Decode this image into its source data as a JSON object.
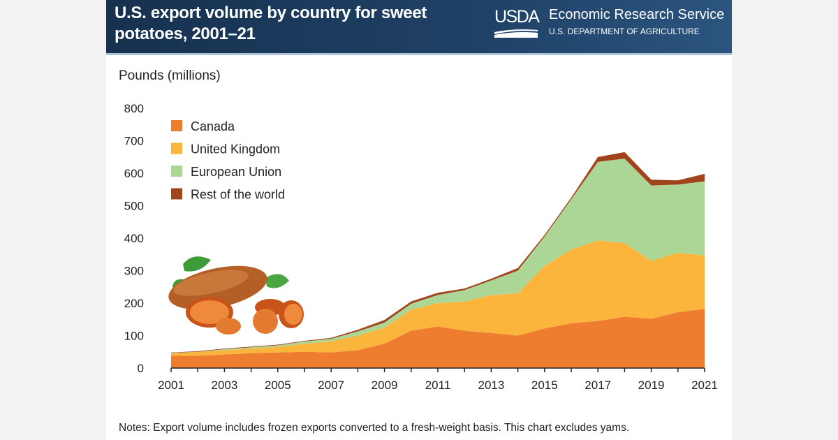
{
  "header": {
    "title": "U.S. export volume by country for sweet potatoes, 2001–21",
    "logo_text": "USDA",
    "agency": "Economic Research Service",
    "department": "U.S. DEPARTMENT OF AGRICULTURE"
  },
  "notes": "Notes: Export volume includes frozen exports converted to a fresh-weight basis. This chart excludes yams.",
  "chart_data": {
    "type": "area",
    "stacked": true,
    "title": "U.S. export volume by country for sweet potatoes, 2001–21",
    "ylabel": "Pounds (millions)",
    "xlabel": "",
    "ylim": [
      0,
      800
    ],
    "yticks": [
      "0",
      "100",
      "200",
      "300",
      "400",
      "500",
      "600",
      "700",
      "800"
    ],
    "xticks": [
      "2001",
      "2003",
      "2005",
      "2007",
      "2009",
      "2011",
      "2013",
      "2015",
      "2017",
      "2019",
      "2021"
    ],
    "x": [
      2001,
      2002,
      2003,
      2004,
      2005,
      2006,
      2007,
      2008,
      2009,
      2010,
      2011,
      2012,
      2013,
      2014,
      2015,
      2016,
      2017,
      2018,
      2019,
      2020,
      2021
    ],
    "legend_position": "top-left",
    "series": [
      {
        "name": "Canada",
        "color": "#ee7d2f",
        "values": [
          38,
          38,
          42,
          46,
          48,
          50,
          48,
          55,
          75,
          115,
          128,
          115,
          108,
          100,
          122,
          138,
          145,
          158,
          152,
          172,
          182
        ]
      },
      {
        "name": "United Kingdom",
        "color": "#fbb53c",
        "values": [
          7,
          12,
          13,
          14,
          17,
          25,
          34,
          45,
          50,
          65,
          72,
          90,
          117,
          130,
          193,
          227,
          248,
          227,
          178,
          183,
          165
        ]
      },
      {
        "name": "European Union",
        "color": "#acd696",
        "values": [
          2,
          0,
          3,
          4,
          5,
          7,
          8,
          13,
          15,
          18,
          25,
          35,
          45,
          70,
          90,
          155,
          242,
          260,
          232,
          210,
          228
        ]
      },
      {
        "name": "Rest of the world",
        "color": "#a2441b",
        "values": [
          1,
          2,
          2,
          2,
          2,
          2,
          3,
          5,
          8,
          7,
          7,
          5,
          5,
          8,
          5,
          5,
          15,
          20,
          18,
          13,
          23
        ]
      }
    ]
  }
}
